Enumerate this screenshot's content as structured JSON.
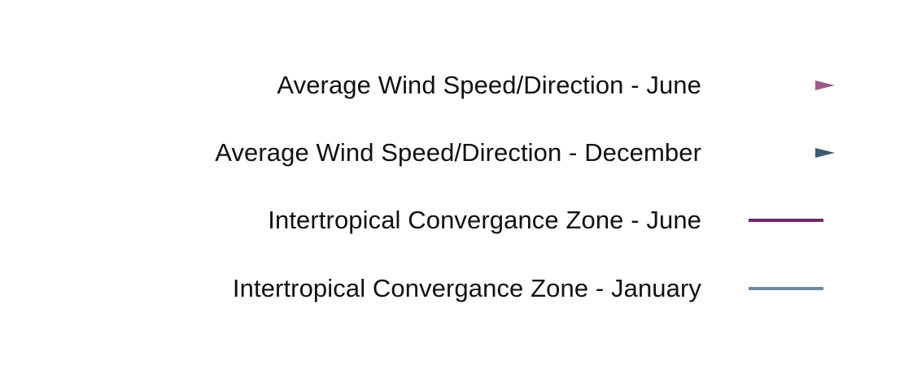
{
  "legend": {
    "items": [
      {
        "label": "Average Wind Speed/Direction - June",
        "symbol": "dotted-arrow",
        "color": "#9e5a8c"
      },
      {
        "label": "Average Wind Speed/Direction - December",
        "symbol": "dotted-arrow",
        "color": "#3e5a70"
      },
      {
        "label": "Intertropical Convergance Zone - June",
        "symbol": "solid-line",
        "color": "#6e2b68"
      },
      {
        "label": "Intertropical Convergance Zone - January",
        "symbol": "solid-line",
        "color": "#6b8aa0"
      }
    ]
  }
}
